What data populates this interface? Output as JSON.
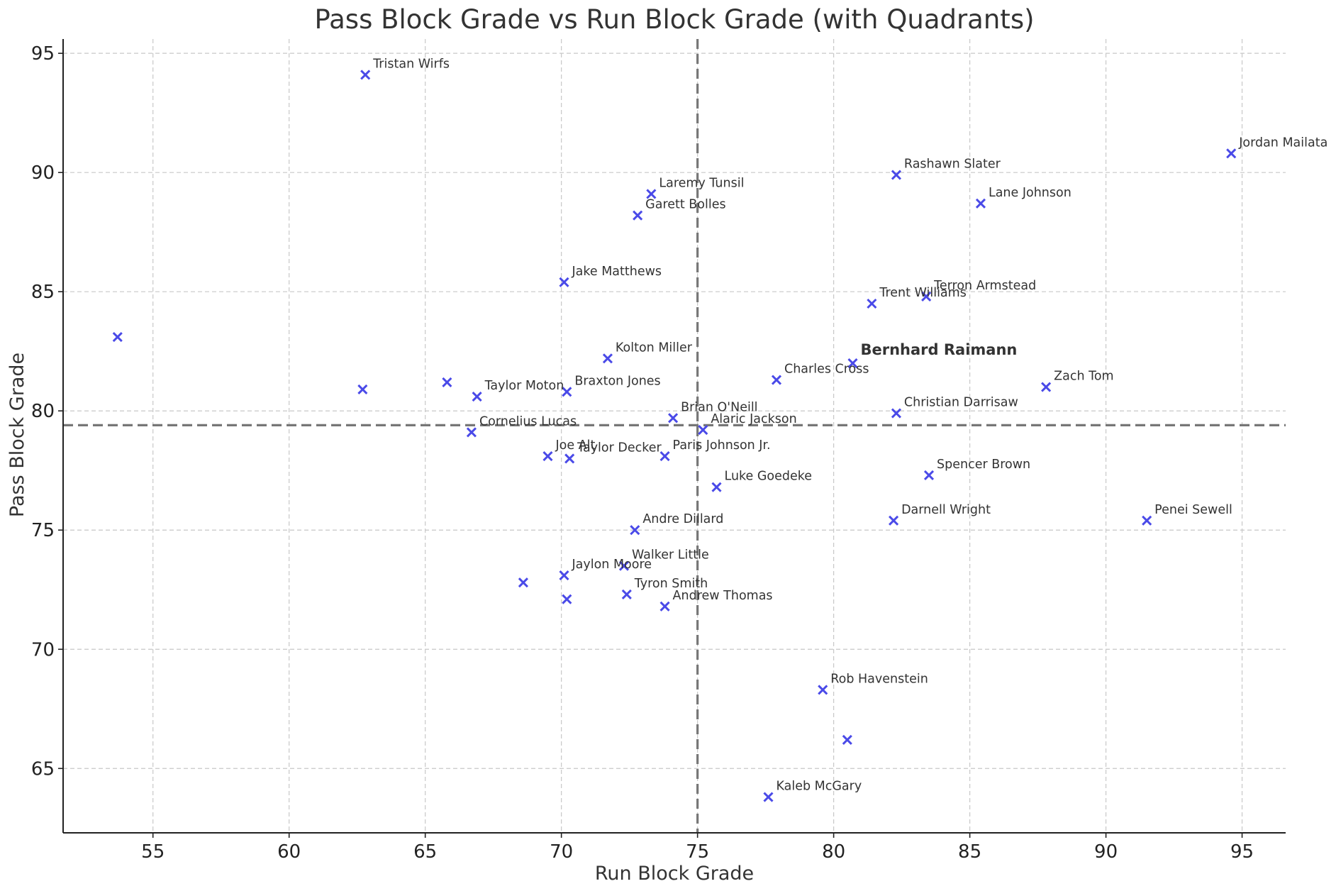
{
  "chart_data": {
    "type": "scatter",
    "title": "Pass Block Grade vs Run Block Grade (with Quadrants)",
    "xlabel": "Run Block Grade",
    "ylabel": "Pass Block Grade",
    "xlim": [
      51.7,
      96.6
    ],
    "ylim": [
      62.3,
      95.6
    ],
    "xticks": [
      55,
      60,
      65,
      70,
      75,
      80,
      85,
      90,
      95
    ],
    "yticks": [
      65,
      70,
      75,
      80,
      85,
      90,
      95
    ],
    "grid": true,
    "marker": "x",
    "marker_color": "#4a4ae8",
    "highlight_color": "#ff0000",
    "reference_lines": {
      "x": 75.0,
      "y": 79.4
    },
    "points": [
      {
        "label": "Tristan Wirfs",
        "x": 62.8,
        "y": 94.1
      },
      {
        "label": "Jordan Mailata",
        "x": 94.6,
        "y": 90.8
      },
      {
        "label": "Rashawn Slater",
        "x": 82.3,
        "y": 89.9
      },
      {
        "label": "Laremy Tunsil",
        "x": 73.3,
        "y": 89.1
      },
      {
        "label": "Lane Johnson",
        "x": 85.4,
        "y": 88.7
      },
      {
        "label": "Garett Bolles",
        "x": 72.8,
        "y": 88.2
      },
      {
        "label": "Jake Matthews",
        "x": 70.1,
        "y": 85.4
      },
      {
        "label": "Terron Armstead",
        "x": 83.4,
        "y": 84.8
      },
      {
        "label": "Trent Williams",
        "x": 81.4,
        "y": 84.5
      },
      {
        "label": "",
        "x": 53.7,
        "y": 83.1
      },
      {
        "label": "Kolton Miller",
        "x": 71.7,
        "y": 82.2
      },
      {
        "label": "Bernhard Raimann",
        "x": 80.7,
        "y": 82.0,
        "highlight": true
      },
      {
        "label": "Charles Cross",
        "x": 77.9,
        "y": 81.3
      },
      {
        "label": "",
        "x": 65.8,
        "y": 81.2
      },
      {
        "label": "Zach Tom",
        "x": 87.8,
        "y": 81.0
      },
      {
        "label": "",
        "x": 62.7,
        "y": 80.9
      },
      {
        "label": "Braxton Jones",
        "x": 70.2,
        "y": 80.8
      },
      {
        "label": "Taylor Moton",
        "x": 66.9,
        "y": 80.6
      },
      {
        "label": "Christian Darrisaw",
        "x": 82.3,
        "y": 79.9
      },
      {
        "label": "Brian O'Neill",
        "x": 74.1,
        "y": 79.7
      },
      {
        "label": "Alaric Jackson",
        "x": 75.2,
        "y": 79.2
      },
      {
        "label": "Cornelius Lucas",
        "x": 66.7,
        "y": 79.1
      },
      {
        "label": "Joe Alt",
        "x": 69.5,
        "y": 78.1
      },
      {
        "label": "Paris Johnson Jr.",
        "x": 73.8,
        "y": 78.1
      },
      {
        "label": "Taylor Decker",
        "x": 70.3,
        "y": 78.0
      },
      {
        "label": "Spencer Brown",
        "x": 83.5,
        "y": 77.3
      },
      {
        "label": "Luke Goedeke",
        "x": 75.7,
        "y": 76.8
      },
      {
        "label": "Darnell Wright",
        "x": 82.2,
        "y": 75.4
      },
      {
        "label": "Penei Sewell",
        "x": 91.5,
        "y": 75.4
      },
      {
        "label": "Andre Dillard",
        "x": 72.7,
        "y": 75.0
      },
      {
        "label": "Walker Little",
        "x": 72.3,
        "y": 73.5
      },
      {
        "label": "Jaylon Moore",
        "x": 70.1,
        "y": 73.1
      },
      {
        "label": "",
        "x": 68.6,
        "y": 72.8
      },
      {
        "label": "Tyron Smith",
        "x": 72.4,
        "y": 72.3
      },
      {
        "label": "",
        "x": 70.2,
        "y": 72.1
      },
      {
        "label": "Andrew Thomas",
        "x": 73.8,
        "y": 71.8
      },
      {
        "label": "Rob Havenstein",
        "x": 79.6,
        "y": 68.3
      },
      {
        "label": "",
        "x": 80.5,
        "y": 66.2
      },
      {
        "label": "Kaleb McGary",
        "x": 77.6,
        "y": 63.8
      }
    ]
  }
}
